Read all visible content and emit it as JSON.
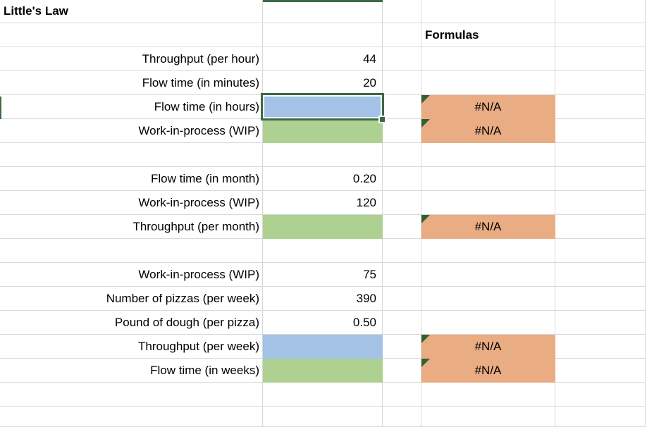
{
  "sheet": {
    "title": "Little's Law",
    "formulas_header": "Formulas",
    "error_value": "#N/A",
    "rows": [
      {
        "label": "Little's Law"
      },
      {},
      {
        "label": "Throughput (per hour)",
        "value": "44"
      },
      {
        "label": "Flow time (in minutes)",
        "value": "20"
      },
      {
        "label": "Flow time (in hours)"
      },
      {
        "label": "Work-in-process (WIP)"
      },
      {},
      {
        "label": "Flow time (in month)",
        "value": "0.20"
      },
      {
        "label": "Work-in-process (WIP)",
        "value": "120"
      },
      {
        "label": "Throughput (per month)"
      },
      {},
      {
        "label": "Work-in-process (WIP)",
        "value": "75"
      },
      {
        "label": "Number of pizzas (per week)",
        "value": "390"
      },
      {
        "label": "Pound of dough (per pizza)",
        "value": "0.50"
      },
      {
        "label": "Throughput (per week)"
      },
      {
        "label": "Flow time (in weeks)"
      },
      {},
      {}
    ],
    "colors": {
      "input_cell_blue": "#a3c2e5",
      "computed_cell_green": "#aed191",
      "formula_error_orange": "#e9ac83",
      "selection_green": "#3c6946",
      "note_triangle_green": "#2f5f33",
      "gridline_gray": "#d9d9d9"
    }
  }
}
